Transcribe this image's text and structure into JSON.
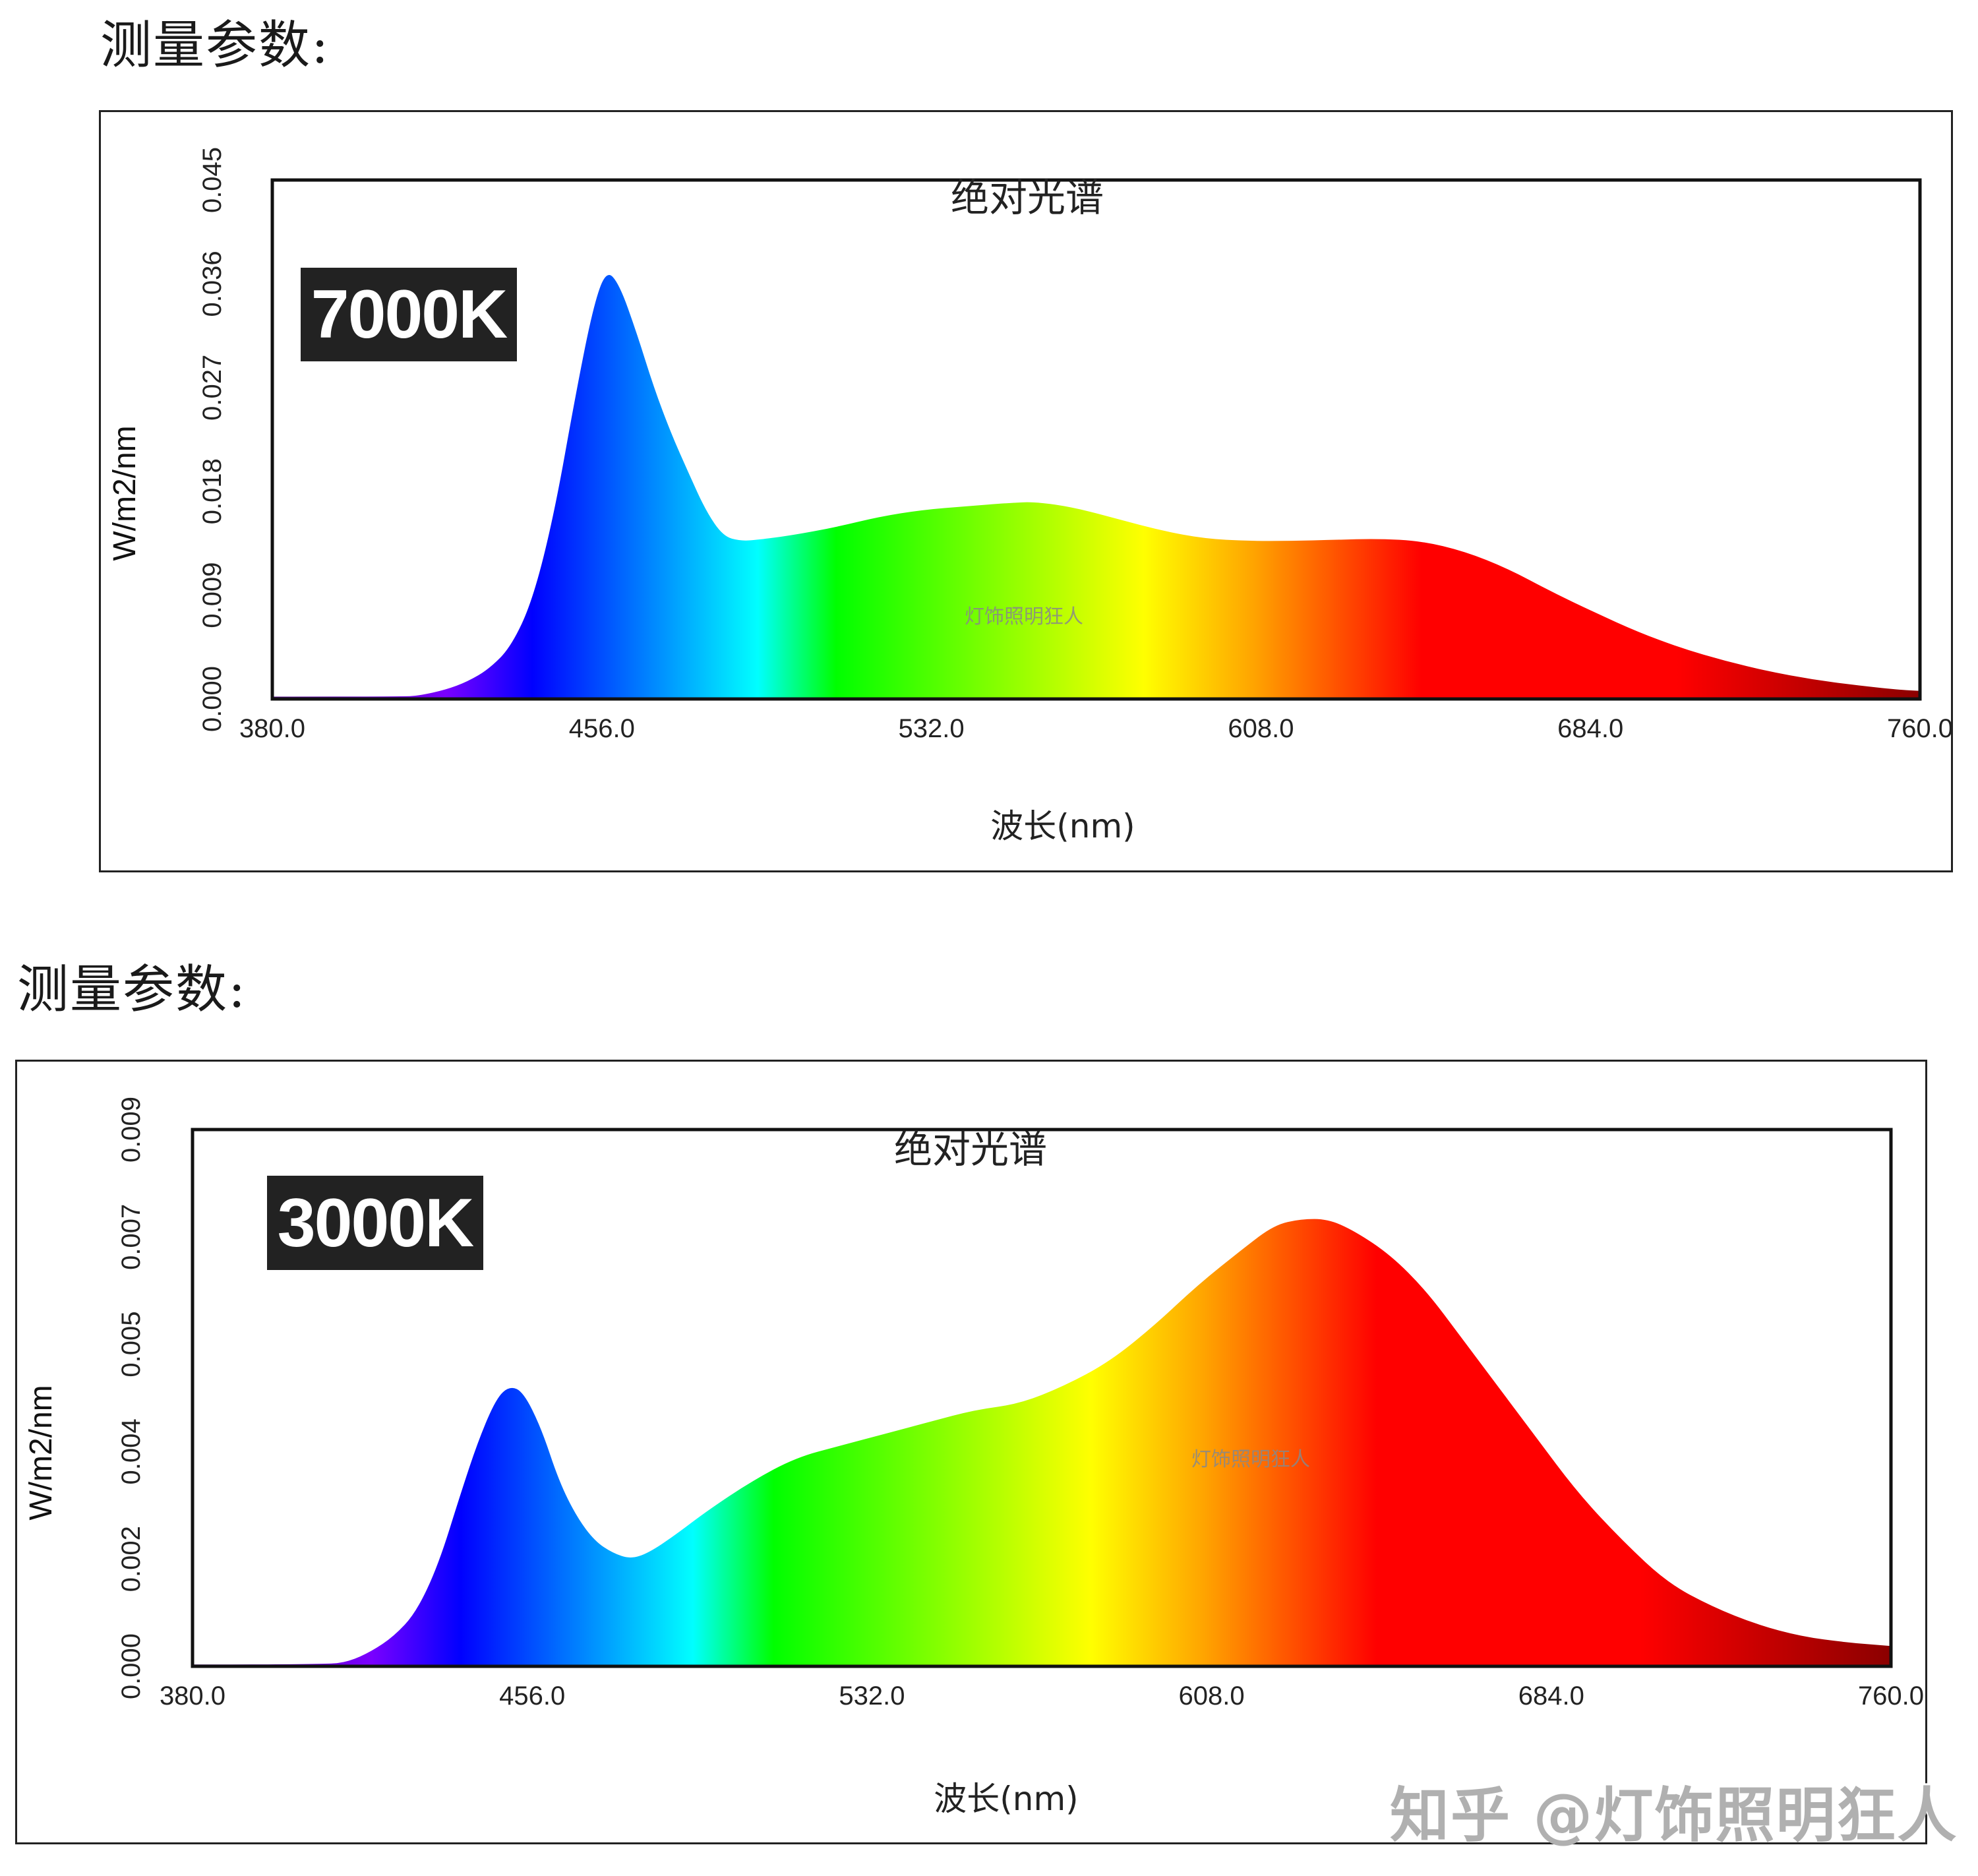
{
  "page": {
    "section_title": "测量参数:",
    "corner_watermark": "知乎 @灯饰照明狂人"
  },
  "charts": [
    {
      "id": "chart-7000k",
      "badge": "7000K",
      "title": "绝对光谱",
      "xlabel": "波长(nm)",
      "ylabel": "W/m2/nm",
      "watermark": "灯饰照明狂人",
      "x_ticks": [
        "380.0",
        "456.0",
        "532.0",
        "608.0",
        "684.0",
        "760.0"
      ],
      "y_ticks": [
        "0.000",
        "0.009",
        "0.018",
        "0.027",
        "0.036",
        "0.045"
      ]
    },
    {
      "id": "chart-3000k",
      "badge": "3000K",
      "title": "绝对光谱",
      "xlabel": "波长(nm)",
      "ylabel": "W/m2/nm",
      "watermark": "灯饰照明狂人",
      "x_ticks": [
        "380.0",
        "456.0",
        "532.0",
        "608.0",
        "684.0",
        "760.0"
      ],
      "y_ticks": [
        "0.000",
        "0.002",
        "0.004",
        "0.005",
        "0.007",
        "0.009"
      ]
    }
  ],
  "colors": {
    "badge_bg": "#222222",
    "badge_text": "#ffffff",
    "frame": "#222222",
    "spectrum_stops": [
      {
        "nm": 380,
        "color": "#4b0082"
      },
      {
        "nm": 420,
        "color": "#7a00ff"
      },
      {
        "nm": 440,
        "color": "#0000ff"
      },
      {
        "nm": 492,
        "color": "#00ffff"
      },
      {
        "nm": 510,
        "color": "#00ff00"
      },
      {
        "nm": 581,
        "color": "#ffff00"
      },
      {
        "nm": 606,
        "color": "#ffa500"
      },
      {
        "nm": 645,
        "color": "#ff0000"
      },
      {
        "nm": 704,
        "color": "#ff0000"
      },
      {
        "nm": 760,
        "color": "#8b0000"
      }
    ]
  },
  "chart_data": [
    {
      "type": "area",
      "title": "绝对光谱",
      "subtitle": "7000K",
      "xlabel": "波长(nm)",
      "ylabel": "W/m2/nm",
      "xlim": [
        380,
        760
      ],
      "ylim": [
        0,
        0.045
      ],
      "x_ticks": [
        380.0,
        456.0,
        532.0,
        608.0,
        684.0,
        760.0
      ],
      "y_ticks": [
        0.0,
        0.009,
        0.018,
        0.027,
        0.036,
        0.045
      ],
      "grid": false,
      "legend": null,
      "annotations": [
        "7000K",
        "灯饰照明狂人"
      ],
      "x": [
        380,
        410,
        414,
        420,
        425,
        430,
        435,
        440,
        445,
        450,
        454,
        457,
        460,
        464,
        468,
        472,
        476,
        480,
        484,
        488,
        492,
        500,
        510,
        520,
        530,
        540,
        550,
        556,
        565,
        575,
        585,
        595,
        605,
        615,
        625,
        635,
        645,
        655,
        665,
        675,
        685,
        695,
        705,
        715,
        725,
        735,
        745,
        755,
        760
      ],
      "values": [
        0.0002,
        0.0002,
        0.0003,
        0.0008,
        0.0015,
        0.0026,
        0.0045,
        0.0085,
        0.016,
        0.0265,
        0.034,
        0.0372,
        0.036,
        0.0318,
        0.027,
        0.023,
        0.0196,
        0.0163,
        0.0141,
        0.0137,
        0.0138,
        0.0142,
        0.0149,
        0.0158,
        0.0164,
        0.0167,
        0.017,
        0.0171,
        0.0166,
        0.0156,
        0.0146,
        0.0139,
        0.0137,
        0.0137,
        0.0138,
        0.0139,
        0.0137,
        0.0128,
        0.0113,
        0.0093,
        0.0075,
        0.0058,
        0.0044,
        0.0033,
        0.0024,
        0.0017,
        0.0012,
        0.0008,
        0.0007
      ]
    },
    {
      "type": "area",
      "title": "绝对光谱",
      "subtitle": "3000K",
      "xlabel": "波长(nm)",
      "ylabel": "W/m2/nm",
      "xlim": [
        380,
        760
      ],
      "ylim": [
        0,
        0.009
      ],
      "x_ticks": [
        380.0,
        456.0,
        532.0,
        608.0,
        684.0,
        760.0
      ],
      "y_ticks": [
        0.0,
        0.002,
        0.004,
        0.005,
        0.007,
        0.009
      ],
      "grid": false,
      "legend": null,
      "annotations": [
        "3000K",
        "灯饰照明狂人"
      ],
      "x": [
        380,
        410,
        415,
        420,
        425,
        430,
        435,
        440,
        444,
        448,
        451,
        454,
        458,
        462,
        466,
        470,
        474,
        478,
        482,
        488,
        495,
        505,
        515,
        525,
        535,
        545,
        555,
        565,
        575,
        585,
        595,
        605,
        615,
        622,
        628,
        634,
        640,
        648,
        656,
        664,
        672,
        680,
        690,
        700,
        710,
        720,
        730,
        740,
        750,
        760
      ],
      "values": [
        3e-05,
        3e-05,
        8e-05,
        0.00025,
        0.0005,
        0.0009,
        0.0017,
        0.0029,
        0.0038,
        0.0045,
        0.0047,
        0.0046,
        0.004,
        0.0031,
        0.0025,
        0.0021,
        0.0019,
        0.0018,
        0.0019,
        0.0022,
        0.0026,
        0.0031,
        0.0035,
        0.0037,
        0.0039,
        0.0041,
        0.0043,
        0.0044,
        0.0047,
        0.0051,
        0.0057,
        0.0064,
        0.007,
        0.0074,
        0.0075,
        0.0075,
        0.0073,
        0.0069,
        0.0063,
        0.0055,
        0.0047,
        0.0039,
        0.0029,
        0.0021,
        0.0014,
        0.001,
        0.0007,
        0.0005,
        0.0004,
        0.00034
      ]
    }
  ]
}
